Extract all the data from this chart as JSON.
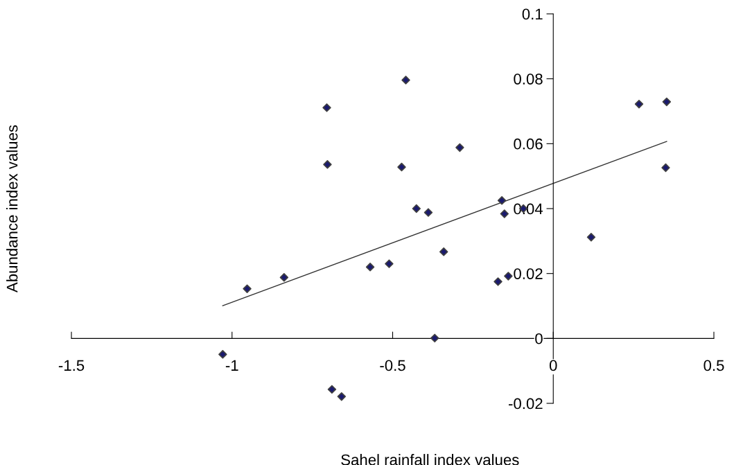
{
  "chart_data": {
    "type": "scatter",
    "xlabel": "Sahel rainfall index values",
    "ylabel": "Abundance index values",
    "xlim": [
      -1.5,
      0.5
    ],
    "xticks": [
      -1.5,
      -1,
      -0.5,
      0,
      0.5
    ],
    "ylim": [
      -0.02,
      0.1
    ],
    "yticks": [
      -0.02,
      0,
      0.02,
      0.04,
      0.06,
      0.08,
      0.1
    ],
    "grid": false,
    "legend": false,
    "marker": "diamond",
    "series": [
      {
        "color": "#1a1a6e",
        "x": [
          -1.029,
          -0.953,
          -0.838,
          -0.705,
          -0.703,
          -0.689,
          -0.659,
          -0.57,
          -0.511,
          -0.472,
          -0.459,
          -0.426,
          -0.389,
          -0.369,
          -0.341,
          -0.291,
          -0.172,
          -0.16,
          -0.152,
          -0.14,
          -0.093,
          0.118,
          0.267,
          0.35,
          0.353
        ],
        "values": [
          -0.0049,
          0.0153,
          0.0188,
          0.0711,
          0.0536,
          -0.0157,
          -0.0179,
          0.022,
          0.023,
          0.0528,
          0.0796,
          0.04,
          0.0388,
          0.0001,
          0.0267,
          0.0588,
          0.0175,
          0.0425,
          0.0384,
          0.0192,
          0.04,
          0.0312,
          0.0722,
          0.0526,
          0.0729
        ]
      },
      {
        "type": "line",
        "color": "#333333",
        "marker": "none",
        "line_style": "solid",
        "x": [
          -1.029,
          0.353
        ],
        "values": [
          0.0101,
          0.0607
        ]
      }
    ]
  }
}
